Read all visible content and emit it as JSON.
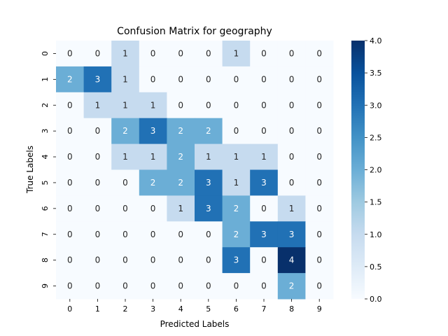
{
  "chart_data": {
    "type": "heatmap",
    "title": "Confusion Matrix for geography",
    "xlabel": "Predicted Labels",
    "ylabel": "True Labels",
    "x_categories": [
      "0",
      "1",
      "2",
      "3",
      "4",
      "5",
      "6",
      "7",
      "8",
      "9"
    ],
    "y_categories": [
      "0",
      "1",
      "2",
      "3",
      "4",
      "5",
      "6",
      "7",
      "8",
      "9"
    ],
    "values": [
      [
        0,
        0,
        1,
        0,
        0,
        0,
        1,
        0,
        0,
        0
      ],
      [
        2,
        3,
        1,
        0,
        0,
        0,
        0,
        0,
        0,
        0
      ],
      [
        0,
        1,
        1,
        1,
        0,
        0,
        0,
        0,
        0,
        0
      ],
      [
        0,
        0,
        2,
        3,
        2,
        2,
        0,
        0,
        0,
        0
      ],
      [
        0,
        0,
        1,
        1,
        2,
        1,
        1,
        1,
        0,
        0
      ],
      [
        0,
        0,
        0,
        2,
        2,
        3,
        1,
        3,
        0,
        0
      ],
      [
        0,
        0,
        0,
        0,
        1,
        3,
        2,
        0,
        1,
        0
      ],
      [
        0,
        0,
        0,
        0,
        0,
        0,
        2,
        3,
        3,
        0
      ],
      [
        0,
        0,
        0,
        0,
        0,
        0,
        3,
        0,
        4,
        0
      ],
      [
        0,
        0,
        0,
        0,
        0,
        0,
        0,
        0,
        2,
        0
      ]
    ],
    "colormap": "Blues",
    "vmin": 0,
    "vmax": 4,
    "colorbar_ticks": [
      "0.0",
      "0.5",
      "1.0",
      "1.5",
      "2.0",
      "2.5",
      "3.0",
      "3.5",
      "4.0"
    ],
    "annotations": true
  }
}
